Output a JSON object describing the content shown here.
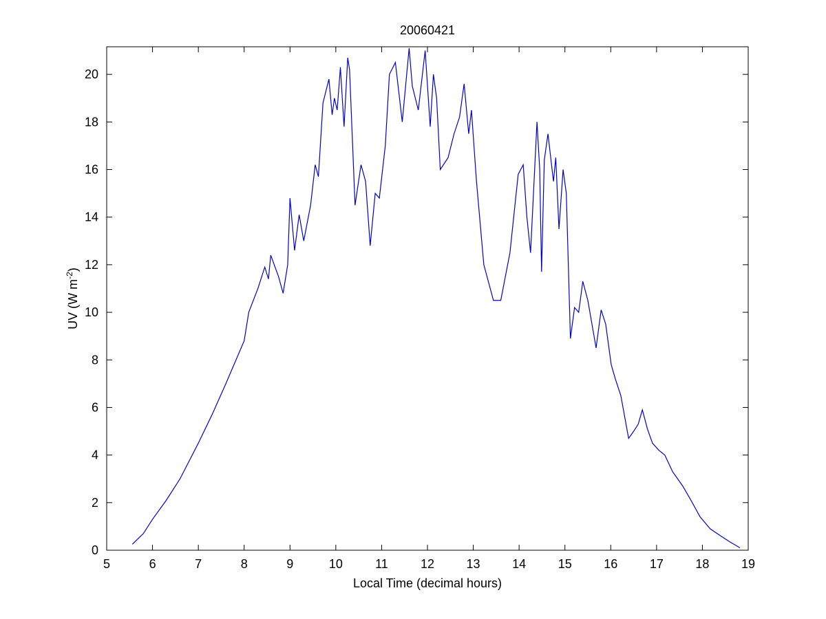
{
  "chart_data": {
    "type": "line",
    "title": "20060421",
    "x_label": "Local Time (decimal hours)",
    "y_label": [
      "UV (W m",
      "-2",
      ")"
    ],
    "xlim": [
      5,
      19
    ],
    "xticks": [
      5,
      6,
      7,
      8,
      9,
      10,
      11,
      12,
      13,
      14,
      15,
      16,
      17,
      18,
      19
    ],
    "ylim": [
      0,
      21.16
    ],
    "yticks": [
      0,
      2,
      4,
      6,
      8,
      10,
      12,
      14,
      16,
      18,
      20
    ],
    "series": [
      {
        "color": "#0000cc",
        "x": [
          5.56,
          5.8,
          6.0,
          6.3,
          6.6,
          7.0,
          7.3,
          7.6,
          8.0,
          8.1,
          8.3,
          8.45,
          8.53,
          8.58,
          8.75,
          8.85,
          8.95,
          9.0,
          9.1,
          9.2,
          9.3,
          9.45,
          9.55,
          9.62,
          9.72,
          9.85,
          9.92,
          9.97,
          10.03,
          10.1,
          10.18,
          10.26,
          10.3,
          10.42,
          10.55,
          10.65,
          10.75,
          10.86,
          10.95,
          11.08,
          11.17,
          11.3,
          11.45,
          11.6,
          11.67,
          11.8,
          11.95,
          12.06,
          12.13,
          12.2,
          12.28,
          12.45,
          12.58,
          12.7,
          12.8,
          12.9,
          12.96,
          13.07,
          13.23,
          13.44,
          13.6,
          13.8,
          13.98,
          14.09,
          14.17,
          14.25,
          14.39,
          14.45,
          14.49,
          14.55,
          14.63,
          14.75,
          14.8,
          14.87,
          14.96,
          15.03,
          15.12,
          15.21,
          15.3,
          15.39,
          15.5,
          15.68,
          15.79,
          15.89,
          16.01,
          16.1,
          16.22,
          16.39,
          16.5,
          16.6,
          16.69,
          16.8,
          16.91,
          17.05,
          17.18,
          17.35,
          17.57,
          17.75,
          17.95,
          18.17,
          18.4,
          18.6,
          18.82
        ],
        "values": [
          0.25,
          0.7,
          1.3,
          2.1,
          3.0,
          4.5,
          5.7,
          7.0,
          8.8,
          10.0,
          11.0,
          11.9,
          11.4,
          12.4,
          11.5,
          10.8,
          12.0,
          14.8,
          12.6,
          14.1,
          13.0,
          14.5,
          16.2,
          15.7,
          18.8,
          19.8,
          18.3,
          19.0,
          18.5,
          20.3,
          17.8,
          20.7,
          20.2,
          14.5,
          16.2,
          15.5,
          12.8,
          15.0,
          14.8,
          17.0,
          20.0,
          20.5,
          18.0,
          21.1,
          19.5,
          18.5,
          21.0,
          17.8,
          20.0,
          19.0,
          16.0,
          16.5,
          17.5,
          18.2,
          19.6,
          17.5,
          18.5,
          15.5,
          12.0,
          10.5,
          10.5,
          12.5,
          15.8,
          16.2,
          14.0,
          12.5,
          18.0,
          16.0,
          11.7,
          16.4,
          17.5,
          15.5,
          16.5,
          13.5,
          16.0,
          15.0,
          8.9,
          10.2,
          10.0,
          11.3,
          10.5,
          8.5,
          10.1,
          9.5,
          7.8,
          7.2,
          6.5,
          4.7,
          5.0,
          5.3,
          5.9,
          5.1,
          4.5,
          4.2,
          4.0,
          3.3,
          2.7,
          2.1,
          1.4,
          0.9,
          0.6,
          0.35,
          0.1
        ]
      }
    ]
  }
}
